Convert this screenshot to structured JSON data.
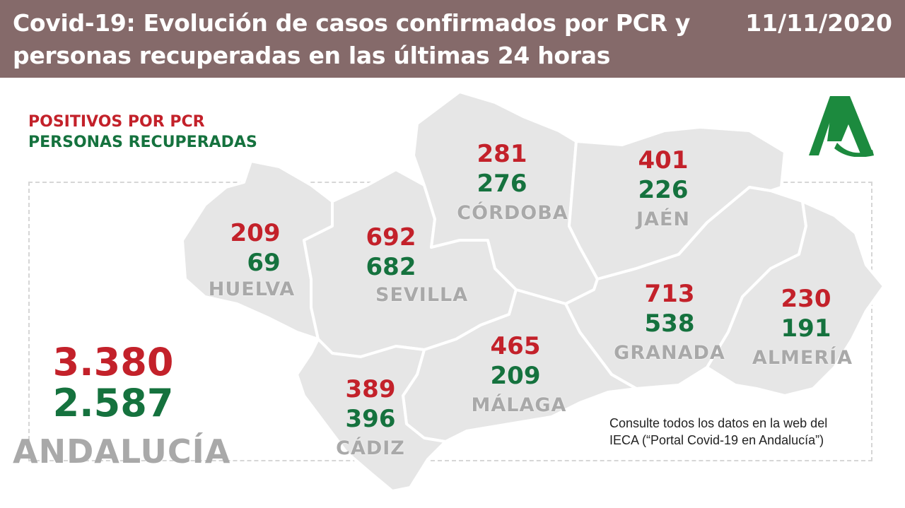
{
  "header": {
    "title": "Covid-19: Evolución de casos confirmados por PCR y personas recuperadas en las últimas 24 horas",
    "date": "11/11/2020"
  },
  "legend": {
    "positives_label": "POSITIVOS POR PCR",
    "recovered_label": "PERSONAS RECUPERADAS"
  },
  "provinces": {
    "huelva": {
      "name": "HUELVA",
      "positives": "209",
      "recovered": "69"
    },
    "sevilla": {
      "name": "SEVILLA",
      "positives": "692",
      "recovered": "682"
    },
    "cordoba": {
      "name": "CÓRDOBA",
      "positives": "281",
      "recovered": "276"
    },
    "jaen": {
      "name": "JAÉN",
      "positives": "401",
      "recovered": "226"
    },
    "granada": {
      "name": "GRANADA",
      "positives": "713",
      "recovered": "538"
    },
    "almeria": {
      "name": "ALMERÍA",
      "positives": "230",
      "recovered": "191"
    },
    "malaga": {
      "name": "MÁLAGA",
      "positives": "465",
      "recovered": "209"
    },
    "cadiz": {
      "name": "CÁDIZ",
      "positives": "389",
      "recovered": "396"
    }
  },
  "total": {
    "region": "ANDALUCÍA",
    "positives": "3.380",
    "recovered": "2.587"
  },
  "note": {
    "line1": "Consulte todos los datos en la web del",
    "line2": "IECA (“Portal Covid-19 en Andalucía”)"
  },
  "colors": {
    "header_bg": "#856a6a",
    "positives": "#c3212a",
    "recovered": "#15723e",
    "map_fill": "#e6e6e6",
    "logo": "#1c8a3e"
  }
}
